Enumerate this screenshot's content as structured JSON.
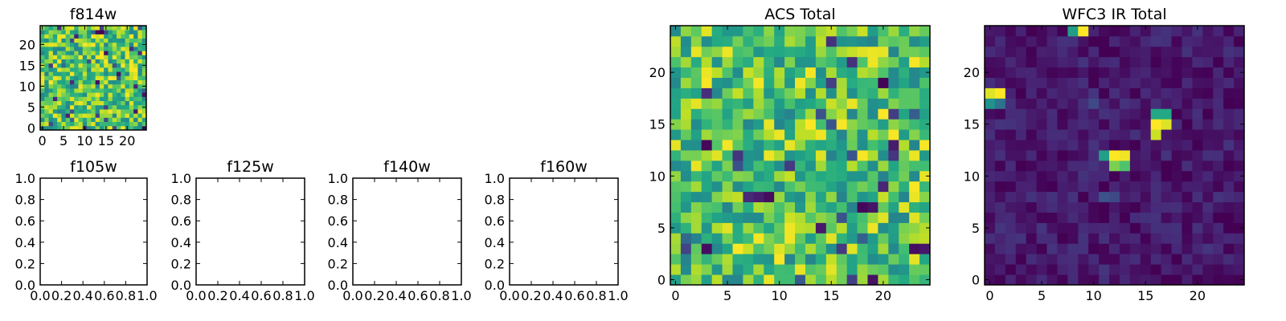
{
  "chart_data": [
    {
      "type": "heatmap",
      "title": "f814w",
      "xlim": [
        -0.5,
        24.5
      ],
      "ylim": [
        -0.5,
        24.5
      ],
      "xticks": [
        0,
        5,
        10,
        15,
        20
      ],
      "yticks": [
        0,
        5,
        10,
        15,
        20
      ],
      "colormap": "viridis",
      "rows": 25,
      "cols": 25,
      "value_profile": {
        "min": 0.0,
        "max": 1.0,
        "base": 0.7,
        "spread": 0.25,
        "low_fraction": 0.06,
        "seed": 11
      }
    },
    {
      "type": "empty",
      "title": "f105w",
      "xlim": [
        0.0,
        1.0
      ],
      "ylim": [
        0.0,
        1.0
      ],
      "xtick_labels": [
        "0.0",
        "0.2",
        "0.4",
        "0.6",
        "0.8",
        "1.0"
      ],
      "ytick_labels": [
        "0.0",
        "0.2",
        "0.4",
        "0.6",
        "0.8",
        "1.0"
      ]
    },
    {
      "type": "empty",
      "title": "f125w",
      "xlim": [
        0.0,
        1.0
      ],
      "ylim": [
        0.0,
        1.0
      ],
      "xtick_labels": [
        "0.0",
        "0.2",
        "0.4",
        "0.6",
        "0.8",
        "1.0"
      ],
      "ytick_labels": [
        "0.0",
        "0.2",
        "0.4",
        "0.6",
        "0.8",
        "1.0"
      ]
    },
    {
      "type": "empty",
      "title": "f140w",
      "xlim": [
        0.0,
        1.0
      ],
      "ylim": [
        0.0,
        1.0
      ],
      "xtick_labels": [
        "0.0",
        "0.2",
        "0.4",
        "0.6",
        "0.8",
        "1.0"
      ],
      "ytick_labels": [
        "0.0",
        "0.2",
        "0.4",
        "0.6",
        "0.8",
        "1.0"
      ]
    },
    {
      "type": "empty",
      "title": "f160w",
      "xlim": [
        0.0,
        1.0
      ],
      "ylim": [
        0.0,
        1.0
      ],
      "xtick_labels": [
        "0.0",
        "0.2",
        "0.4",
        "0.6",
        "0.8",
        "1.0"
      ],
      "ytick_labels": [
        "0.0",
        "0.2",
        "0.4",
        "0.6",
        "0.8",
        "1.0"
      ]
    },
    {
      "type": "heatmap",
      "title": "ACS Total",
      "xlim": [
        -0.5,
        24.5
      ],
      "ylim": [
        -0.5,
        24.5
      ],
      "xticks": [
        0,
        5,
        10,
        15,
        20
      ],
      "yticks": [
        0,
        5,
        10,
        15,
        20
      ],
      "colormap": "viridis",
      "rows": 25,
      "cols": 25,
      "value_profile": {
        "min": 0.0,
        "max": 1.0,
        "base": 0.68,
        "spread": 0.24,
        "low_fraction": 0.07,
        "seed": 29
      }
    },
    {
      "type": "heatmap",
      "title": "WFC3 IR Total",
      "xlim": [
        -0.5,
        24.5
      ],
      "ylim": [
        -0.5,
        24.5
      ],
      "xticks": [
        0,
        5,
        10,
        15,
        20
      ],
      "yticks": [
        0,
        5,
        10,
        15,
        20
      ],
      "colormap": "viridis",
      "rows": 25,
      "cols": 25,
      "value_profile": {
        "min": 0.0,
        "max": 1.0,
        "base": 0.07,
        "spread": 0.08,
        "low_fraction": 0.0,
        "seed": 53
      },
      "bright_cells": [
        {
          "x": 8,
          "y": 24,
          "value": 0.55
        },
        {
          "x": 9,
          "y": 24,
          "value": 1.0
        },
        {
          "x": 0,
          "y": 18,
          "value": 0.95
        },
        {
          "x": 1,
          "y": 18,
          "value": 1.0
        },
        {
          "x": 0,
          "y": 17,
          "value": 0.5
        },
        {
          "x": 1,
          "y": 17,
          "value": 0.38
        },
        {
          "x": 16,
          "y": 16,
          "value": 0.6
        },
        {
          "x": 17,
          "y": 16,
          "value": 0.6
        },
        {
          "x": 16,
          "y": 15,
          "value": 1.0
        },
        {
          "x": 17,
          "y": 15,
          "value": 0.95
        },
        {
          "x": 16,
          "y": 14,
          "value": 0.92
        },
        {
          "x": 11,
          "y": 12,
          "value": 0.55
        },
        {
          "x": 12,
          "y": 12,
          "value": 1.0
        },
        {
          "x": 13,
          "y": 12,
          "value": 0.98
        },
        {
          "x": 12,
          "y": 11,
          "value": 0.8
        },
        {
          "x": 13,
          "y": 11,
          "value": 0.72
        },
        {
          "x": 11,
          "y": 8,
          "value": 0.25
        },
        {
          "x": 12,
          "y": 8,
          "value": 0.22
        },
        {
          "x": 10,
          "y": 17,
          "value": 0.22
        }
      ]
    }
  ]
}
